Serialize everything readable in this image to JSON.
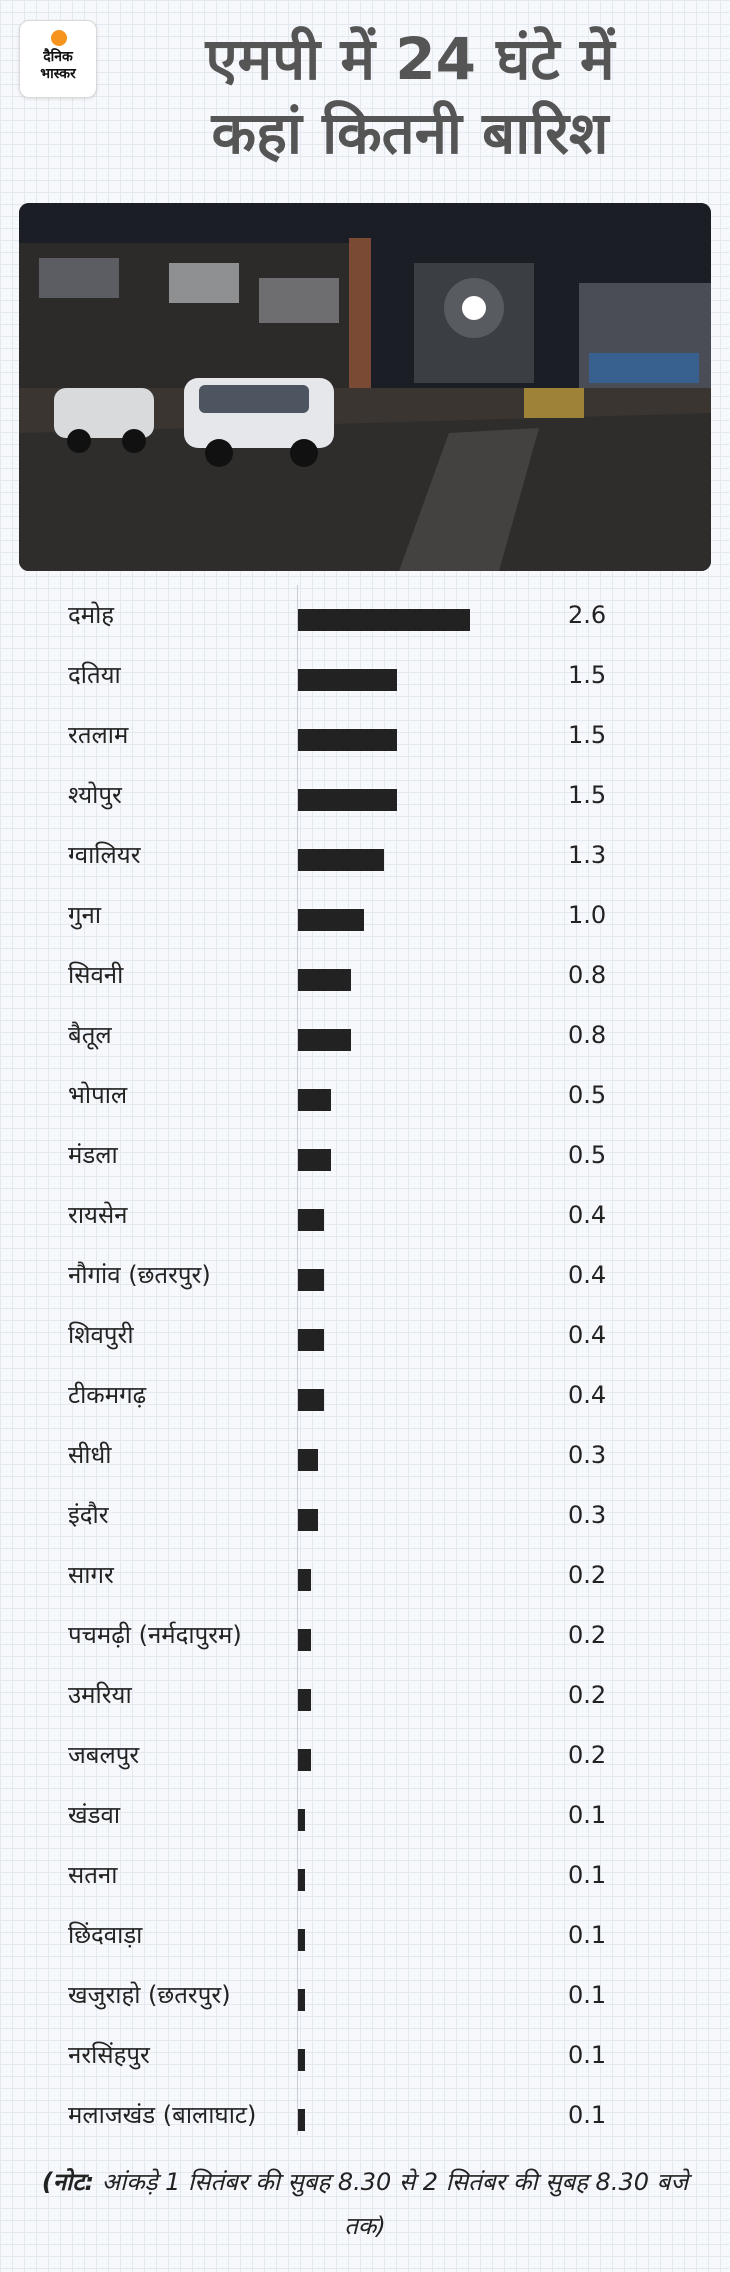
{
  "brand": {
    "line1": "दैनिक",
    "line2": "भास्कर"
  },
  "title": {
    "line1": "एमपी में 24 घंटे में",
    "line2": "कहां कितनी बारिश"
  },
  "photo_description": "Night street scene with rain, cars on waterlogged road",
  "note": {
    "prefix": "(नोट:",
    "text": " आंकड़े 1 सितंबर की सुबह 8.30 से 2 सितंबर की सुबह 8.30 बजे तक)"
  },
  "chart_data": {
    "type": "bar",
    "orientation": "horizontal",
    "title": "एमपी में 24 घंटे में कहां कितनी बारिश",
    "categories": [
      "दमोह",
      "दतिया",
      "रतलाम",
      "श्योपुर",
      "ग्वालियर",
      "गुना",
      "सिवनी",
      "बैतूल",
      "भोपाल",
      "मंडला",
      "रायसेन",
      "नौगांव (छतरपुर)",
      "शिवपुरी",
      "टीकमगढ़",
      "सीधी",
      "इंदौर",
      "सागर",
      "पचमढ़ी (नर्मदापुरम)",
      "उमरिया",
      "जबलपुर",
      "खंडवा",
      "सतना",
      "छिंदवाड़ा",
      "खजुराहो (छतरपुर)",
      "नरसिंहपुर",
      "मलाजखंड (बालाघाट)"
    ],
    "values": [
      2.6,
      1.5,
      1.5,
      1.5,
      1.3,
      1.0,
      0.8,
      0.8,
      0.5,
      0.5,
      0.4,
      0.4,
      0.4,
      0.4,
      0.3,
      0.3,
      0.2,
      0.2,
      0.2,
      0.2,
      0.1,
      0.1,
      0.1,
      0.1,
      0.1,
      0.1
    ],
    "value_labels": [
      "2.6",
      "1.5",
      "1.5",
      "1.5",
      "1.3",
      "1.0",
      "0.8",
      "0.8",
      "0.5",
      "0.5",
      "0.4",
      "0.4",
      "0.4",
      "0.4",
      "0.3",
      "0.3",
      "0.2",
      "0.2",
      "0.2",
      "0.2",
      "0.1",
      "0.1",
      "0.1",
      "0.1",
      "0.1",
      "0.1"
    ],
    "xlim": [
      0,
      2.6
    ],
    "bar_color": "#222222",
    "grid": false,
    "legend": "none"
  },
  "colors": {
    "background": "#f6f8fb",
    "title": "#555555",
    "accent": "#f7941d"
  }
}
